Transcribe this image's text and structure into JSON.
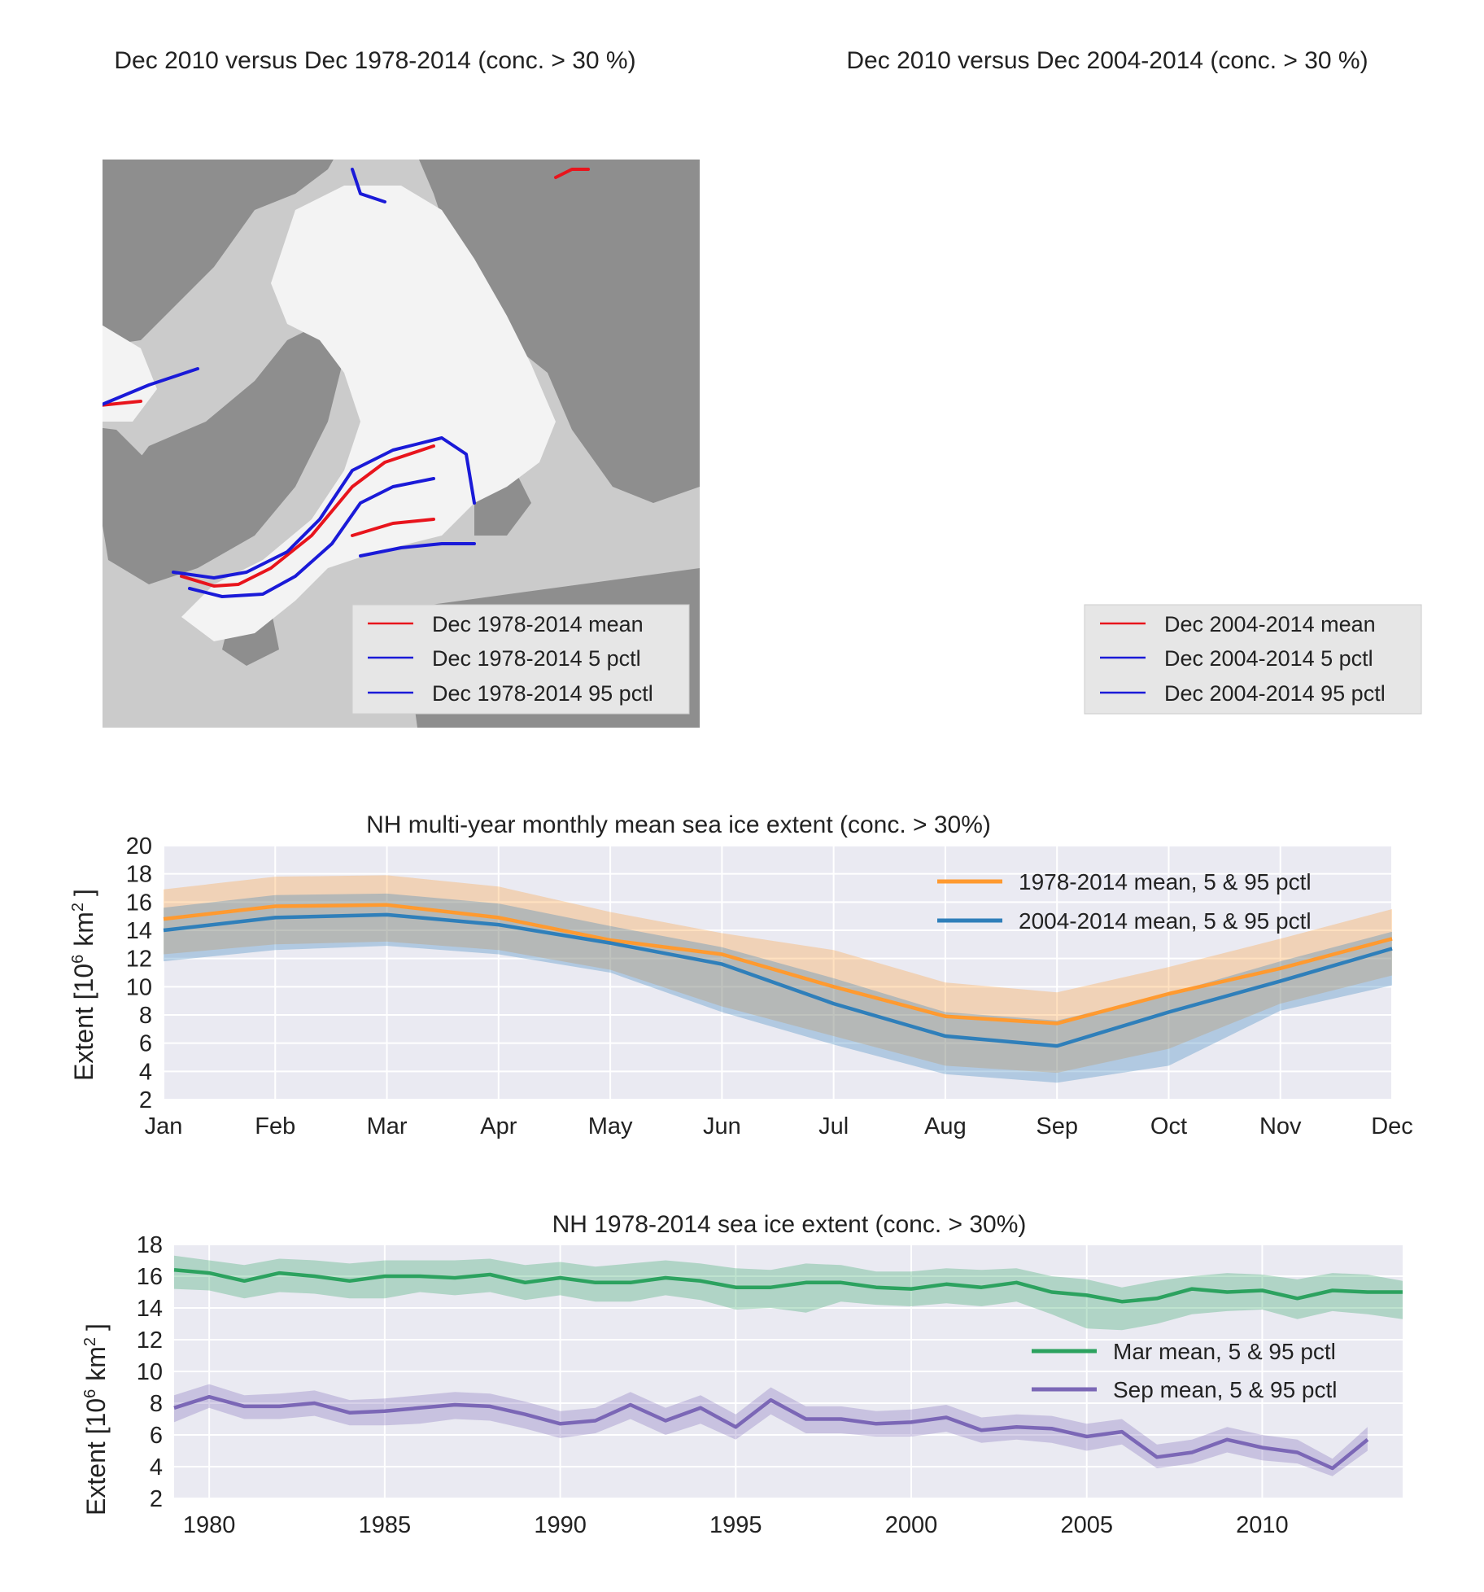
{
  "maps": [
    {
      "title": "Dec 2010 versus Dec 1978-2014 (conc. > 30 %)",
      "legend": [
        "Dec 1978-2014 mean",
        "Dec 1978-2014 5 pctl",
        "Dec 1978-2014 95 pctl"
      ],
      "colors": [
        "#e8141c",
        "#1a1ad8",
        "#1a1ad8"
      ]
    },
    {
      "title": "Dec 2010 versus Dec 2004-2014 (conc. > 30 %)",
      "legend": [
        "Dec 2004-2014 mean",
        "Dec 2004-2014 5 pctl",
        "Dec 2004-2014 95 pctl"
      ],
      "colors": [
        "#e8141c",
        "#1a1ad8",
        "#1a1ad8"
      ]
    }
  ],
  "colors": {
    "land": "#8e8e8e",
    "ocean": "#cbcbcb",
    "ice": "#f3f3f3",
    "plot_bg": "#eaeaf2",
    "grid": "#ffffff"
  },
  "chart_data": [
    {
      "type": "line",
      "title": "NH multi-year monthly mean sea ice extent (conc. > 30%)",
      "ylabel_main": "Extent [10",
      "ylabel_sup": "6",
      "ylabel_unit": "km",
      "ylabel_sup2": "2",
      "ylabel_end": "]",
      "categories": [
        "Jan",
        "Feb",
        "Mar",
        "Apr",
        "May",
        "Jun",
        "Jul",
        "Aug",
        "Sep",
        "Oct",
        "Nov",
        "Dec"
      ],
      "ylim": [
        2,
        20
      ],
      "yticks": [
        2,
        4,
        6,
        8,
        10,
        12,
        14,
        16,
        18,
        20
      ],
      "grid": true,
      "legend_position": "top-right",
      "series": [
        {
          "name": "1978-2014 mean, 5 & 95 pctl",
          "color": "#ff9a30",
          "mean": [
            14.8,
            15.7,
            15.8,
            14.9,
            13.3,
            12.3,
            10.0,
            7.9,
            7.4,
            9.5,
            11.3,
            13.4
          ],
          "p5": [
            12.3,
            13.0,
            13.2,
            12.6,
            11.2,
            8.6,
            6.5,
            4.4,
            3.9,
            5.6,
            8.8,
            10.8
          ],
          "p95": [
            16.9,
            17.8,
            17.9,
            17.1,
            15.3,
            13.8,
            12.6,
            10.3,
            9.6,
            11.4,
            13.4,
            15.5
          ]
        },
        {
          "name": "2004-2014 mean, 5 & 95 pctl",
          "color": "#2f7fba",
          "mean": [
            14.0,
            14.9,
            15.1,
            14.4,
            13.1,
            11.6,
            8.8,
            6.5,
            5.8,
            8.2,
            10.4,
            12.7
          ],
          "p5": [
            11.8,
            12.6,
            12.9,
            12.3,
            11.0,
            8.2,
            5.9,
            3.8,
            3.2,
            4.4,
            8.3,
            10.1
          ],
          "p95": [
            15.6,
            16.5,
            16.6,
            15.9,
            14.3,
            12.8,
            10.6,
            8.2,
            7.6,
            9.5,
            11.8,
            13.9
          ]
        }
      ]
    },
    {
      "type": "line",
      "title": "NH 1978-2014 sea ice extent (conc. > 30%)",
      "ylabel_main": "Extent [10",
      "ylabel_sup": "6",
      "ylabel_unit": "km",
      "ylabel_sup2": "2",
      "ylabel_end": "]",
      "xlim": [
        1979,
        2014
      ],
      "xticks": [
        1980,
        1985,
        1990,
        1995,
        2000,
        2005,
        2010
      ],
      "ylim": [
        2,
        18
      ],
      "yticks": [
        2,
        4,
        6,
        8,
        10,
        12,
        14,
        16,
        18
      ],
      "grid": true,
      "legend_position": "center-right",
      "series": [
        {
          "name": "Mar mean, 5 & 95 pctl",
          "color": "#2ca25f",
          "x": [
            1979,
            1980,
            1981,
            1982,
            1983,
            1984,
            1985,
            1986,
            1987,
            1988,
            1989,
            1990,
            1991,
            1992,
            1993,
            1994,
            1995,
            1996,
            1997,
            1998,
            1999,
            2000,
            2001,
            2002,
            2003,
            2004,
            2005,
            2006,
            2007,
            2008,
            2009,
            2010,
            2011,
            2012,
            2013,
            2014
          ],
          "mean": [
            16.4,
            16.2,
            15.7,
            16.2,
            16.0,
            15.7,
            16.0,
            16.0,
            15.9,
            16.1,
            15.6,
            15.9,
            15.6,
            15.6,
            15.9,
            15.7,
            15.3,
            15.3,
            15.6,
            15.6,
            15.3,
            15.2,
            15.5,
            15.3,
            15.6,
            15.0,
            14.8,
            14.4,
            14.6,
            15.2,
            15.0,
            15.1,
            14.6,
            15.1,
            15.0,
            15.0
          ],
          "p5": [
            15.2,
            15.1,
            14.6,
            15.0,
            14.9,
            14.6,
            14.6,
            15.0,
            14.8,
            15.0,
            14.5,
            14.8,
            14.4,
            14.4,
            14.8,
            14.5,
            13.9,
            14.0,
            13.7,
            14.4,
            14.2,
            14.1,
            14.3,
            14.1,
            14.4,
            13.6,
            12.7,
            12.6,
            13.0,
            13.6,
            13.8,
            13.9,
            13.3,
            13.8,
            13.6,
            13.3
          ],
          "p95": [
            17.3,
            17.0,
            16.7,
            17.1,
            17.0,
            16.8,
            17.0,
            17.0,
            17.0,
            17.1,
            16.7,
            16.9,
            16.6,
            16.8,
            17.0,
            16.8,
            16.5,
            16.4,
            16.8,
            16.7,
            16.3,
            16.3,
            16.5,
            16.4,
            16.5,
            16.0,
            15.8,
            15.3,
            15.7,
            16.0,
            16.2,
            16.1,
            15.8,
            16.2,
            16.1,
            15.7
          ]
        },
        {
          "name": "Sep mean, 5 & 95 pctl",
          "color": "#7b67b6",
          "x": [
            1979,
            1980,
            1981,
            1982,
            1983,
            1984,
            1985,
            1986,
            1987,
            1988,
            1989,
            1990,
            1991,
            1992,
            1993,
            1994,
            1995,
            1996,
            1997,
            1998,
            1999,
            2000,
            2001,
            2002,
            2003,
            2004,
            2005,
            2006,
            2007,
            2008,
            2009,
            2010,
            2011,
            2012,
            2013
          ],
          "mean": [
            7.7,
            8.4,
            7.8,
            7.8,
            8.0,
            7.4,
            7.5,
            7.7,
            7.9,
            7.8,
            7.3,
            6.7,
            6.9,
            7.9,
            6.9,
            7.7,
            6.5,
            8.2,
            7.0,
            7.0,
            6.7,
            6.8,
            7.1,
            6.3,
            6.5,
            6.4,
            5.9,
            6.2,
            4.6,
            4.9,
            5.7,
            5.2,
            4.9,
            3.9,
            5.7
          ],
          "p5": [
            6.8,
            7.7,
            7.0,
            7.0,
            7.2,
            6.6,
            6.6,
            6.7,
            7.0,
            6.9,
            6.4,
            5.8,
            6.1,
            7.0,
            6.0,
            6.7,
            5.7,
            7.3,
            6.1,
            6.1,
            5.9,
            5.9,
            6.2,
            5.5,
            5.7,
            5.5,
            5.0,
            5.4,
            3.9,
            4.2,
            4.9,
            4.4,
            4.2,
            3.4,
            5.0
          ],
          "p95": [
            8.5,
            9.2,
            8.5,
            8.6,
            8.8,
            8.2,
            8.3,
            8.5,
            8.7,
            8.6,
            8.1,
            7.5,
            7.7,
            8.7,
            7.7,
            8.5,
            7.3,
            9.0,
            7.8,
            7.8,
            7.5,
            7.6,
            7.9,
            7.1,
            7.3,
            7.2,
            6.7,
            7.0,
            5.4,
            5.7,
            6.5,
            6.0,
            5.7,
            4.5,
            6.5
          ]
        }
      ]
    }
  ]
}
